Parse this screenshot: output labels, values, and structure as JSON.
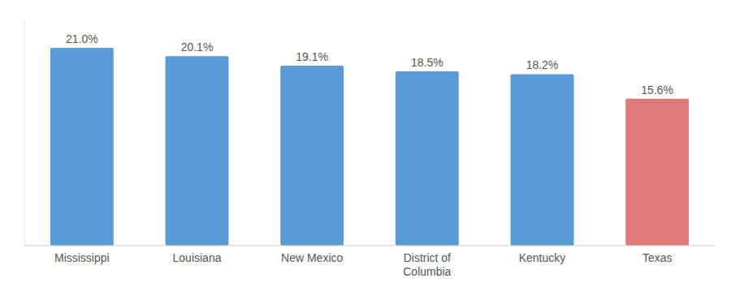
{
  "chart_data": {
    "type": "bar",
    "categories": [
      "Mississippi",
      "Louisiana",
      "New Mexico",
      "District of\nColumbia",
      "Kentucky",
      "Texas"
    ],
    "values": [
      21.0,
      20.1,
      19.1,
      18.5,
      18.2,
      15.6
    ],
    "value_labels": [
      "21.0%",
      "20.1%",
      "19.1%",
      "18.5%",
      "18.2%",
      "15.6%"
    ],
    "colors": [
      "#5b9bd5",
      "#5b9bd5",
      "#5b9bd5",
      "#5b9bd5",
      "#5b9bd5",
      "#e07b7b"
    ],
    "ylim": [
      0,
      24
    ],
    "data_labels": true,
    "tick_labels": "x",
    "grid": false
  }
}
